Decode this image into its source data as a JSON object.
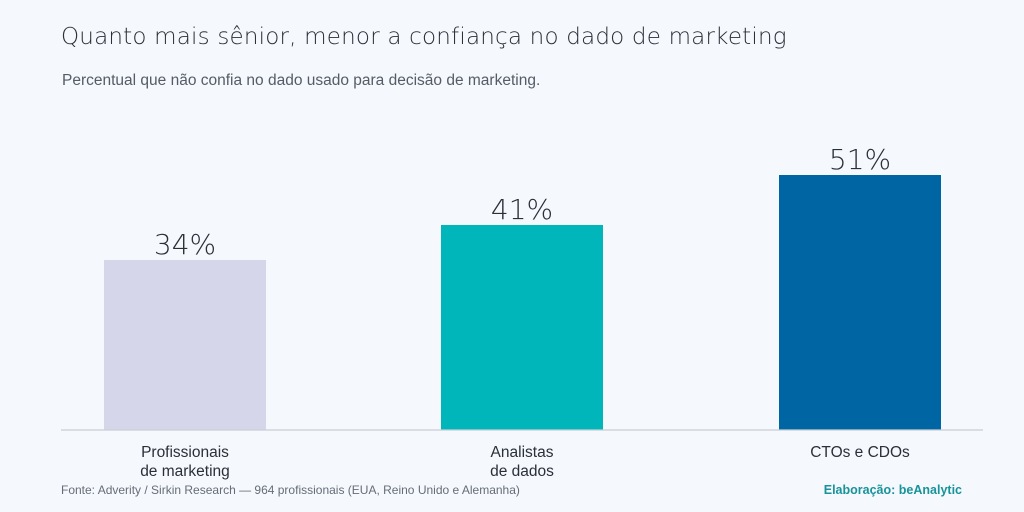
{
  "header": {
    "title": "Quanto mais sênior, menor a confiança no dado de marketing",
    "subtitle": "Percentual que não confia no dado usado para decisão de marketing."
  },
  "chart_data": {
    "type": "bar",
    "categories": [
      [
        "Profissionais",
        "de marketing"
      ],
      [
        "Analistas",
        "de dados"
      ],
      [
        "CTOs e CDOs"
      ]
    ],
    "values": [
      34,
      41,
      51
    ],
    "value_labels": [
      "34%",
      "41%",
      "51%"
    ],
    "colors": [
      "#d5d6ea",
      "#00b6bb",
      "#0066a3"
    ],
    "ylim": [
      0,
      60
    ],
    "grid": false,
    "legend": "none"
  },
  "footer": {
    "source": "Fonte: Adverity / Sirkin Research — 964 profissionais (EUA, Reino Unido e Alemanha)",
    "credit": "Elaboração: beAnalytic"
  }
}
